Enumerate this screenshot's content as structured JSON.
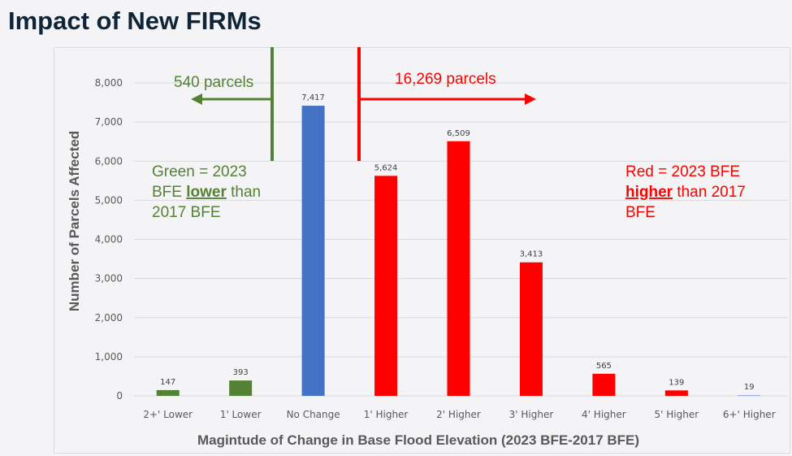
{
  "title": "Impact of New FIRMs",
  "chart_data": {
    "type": "bar",
    "categories": [
      "2+' Lower",
      "1' Lower",
      "No Change",
      "1' Higher",
      "2' Higher",
      "3' Higher",
      "4' Higher",
      "5' Higher",
      "6+' Higher"
    ],
    "values": [
      147,
      393,
      7417,
      5624,
      6509,
      3413,
      565,
      139,
      19
    ],
    "value_labels": [
      "147",
      "393",
      "7,417",
      "5,624",
      "6,509",
      "3,413",
      "565",
      "139",
      "19"
    ],
    "bar_colors": [
      "#548235",
      "#548235",
      "#4472c4",
      "#ff0000",
      "#ff0000",
      "#ff0000",
      "#ff0000",
      "#ff0000",
      "#8faadc"
    ],
    "ylim": [
      0,
      8000
    ],
    "yticks": [
      0,
      1000,
      2000,
      3000,
      4000,
      5000,
      6000,
      7000,
      8000
    ],
    "ytick_labels": [
      "0",
      "1,000",
      "2,000",
      "3,000",
      "4,000",
      "5,000",
      "6,000",
      "7,000",
      "8,000"
    ],
    "xlabel": "Magintude of Change in Base Flood Elevation (2023 BFE-2017 BFE)",
    "ylabel": "Number of Parcels Affected",
    "grid": true,
    "annotations": {
      "lower_count": "540 parcels",
      "higher_count": "16,269 parcels",
      "green_note": [
        "Green = 2023",
        "BFE ",
        "lower",
        " than",
        "2017 BFE"
      ],
      "red_note": [
        "Red = 2023 BFE",
        "higher",
        " than 2017",
        "BFE"
      ],
      "green_color": "#548235",
      "red_color": "#ff0000"
    }
  }
}
